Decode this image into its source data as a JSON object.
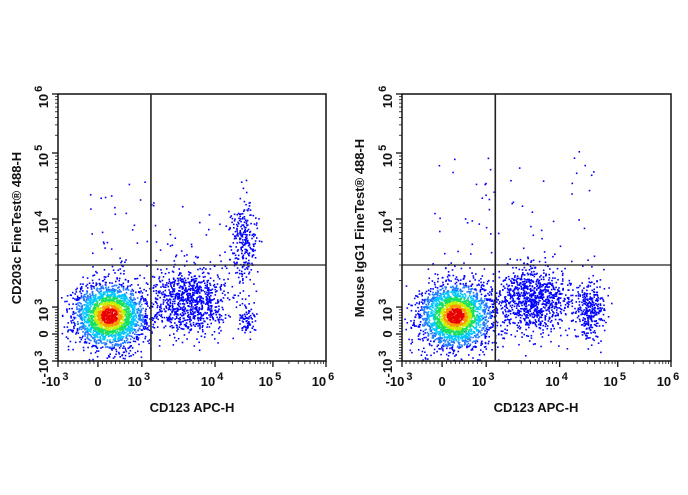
{
  "chart_data": [
    {
      "type": "scatter",
      "subtype": "flow-cytometry-density-dot-plot",
      "xlabel": "CD123 APC-H",
      "ylabel": "CD203c FineTest® 488-H",
      "x_scale": "biexponential",
      "y_scale": "biexponential",
      "xlim": [
        -1000,
        1000000
      ],
      "ylim": [
        -1000,
        1000000
      ],
      "x_ticks": [
        {
          "value": -1000,
          "base": "-10",
          "exp": "3"
        },
        {
          "value": 0,
          "base": "0",
          "exp": ""
        },
        {
          "value": 1000,
          "base": "10",
          "exp": "3"
        },
        {
          "value": 10000,
          "base": "10",
          "exp": "4"
        },
        {
          "value": 100000,
          "base": "10",
          "exp": "5"
        },
        {
          "value": 1000000,
          "base": "10",
          "exp": "6"
        }
      ],
      "y_ticks": [
        {
          "value": -1000,
          "base": "-10",
          "exp": "3"
        },
        {
          "value": 0,
          "base": "0",
          "exp": ""
        },
        {
          "value": 1000,
          "base": "10",
          "exp": "3"
        },
        {
          "value": 10000,
          "base": "10",
          "exp": "4"
        },
        {
          "value": 100000,
          "base": "10",
          "exp": "5"
        },
        {
          "value": 1000000,
          "base": "10",
          "exp": "6"
        }
      ],
      "quadrant_gate": {
        "x": 1330,
        "y": 3000
      },
      "populations": [
        {
          "center": [
            250,
            700
          ],
          "x_range": [
            -600,
            1200
          ],
          "y_range": [
            -150,
            2500
          ],
          "count": 2400,
          "density_colored": true
        },
        {
          "center": [
            4500,
            1200
          ],
          "x_range": [
            1300,
            15000
          ],
          "y_range": [
            -200,
            2300
          ],
          "count": 900,
          "density_colored": false
        },
        {
          "center": [
            30000,
            5500
          ],
          "x_range": [
            17000,
            50000
          ],
          "y_range": [
            2000,
            19000
          ],
          "count": 260,
          "density_colored": false
        },
        {
          "center": [
            35000,
            600
          ],
          "x_range": [
            25000,
            50000
          ],
          "y_range": [
            0,
            1200
          ],
          "count": 80,
          "density_colored": false
        },
        {
          "center": [
            500,
            8000
          ],
          "x_range": [
            -300,
            30000
          ],
          "y_range": [
            3000,
            40000
          ],
          "count": 60,
          "density_colored": false,
          "sparse": true
        }
      ]
    },
    {
      "type": "scatter",
      "subtype": "flow-cytometry-density-dot-plot",
      "xlabel": "CD123 APC-H",
      "ylabel": "Mouse IgG1 FineTest® 488-H",
      "x_scale": "biexponential",
      "y_scale": "biexponential",
      "xlim": [
        -1000,
        1000000
      ],
      "ylim": [
        -1000,
        1000000
      ],
      "x_ticks": [
        {
          "value": -1000,
          "base": "-10",
          "exp": "3"
        },
        {
          "value": 0,
          "base": "0",
          "exp": ""
        },
        {
          "value": 1000,
          "base": "10",
          "exp": "3"
        },
        {
          "value": 10000,
          "base": "10",
          "exp": "4"
        },
        {
          "value": 100000,
          "base": "10",
          "exp": "5"
        },
        {
          "value": 1000000,
          "base": "10",
          "exp": "6"
        }
      ],
      "y_ticks": [
        {
          "value": -1000,
          "base": "-10",
          "exp": "3"
        },
        {
          "value": 0,
          "base": "0",
          "exp": ""
        },
        {
          "value": 1000,
          "base": "10",
          "exp": "3"
        },
        {
          "value": 10000,
          "base": "10",
          "exp": "4"
        },
        {
          "value": 100000,
          "base": "10",
          "exp": "5"
        },
        {
          "value": 1000000,
          "base": "10",
          "exp": "6"
        }
      ],
      "quadrant_gate": {
        "x": 1330,
        "y": 3000
      },
      "populations": [
        {
          "center": [
            290,
            700
          ],
          "x_range": [
            -600,
            1200
          ],
          "y_range": [
            -150,
            2500
          ],
          "count": 2400,
          "density_colored": true
        },
        {
          "center": [
            4500,
            1200
          ],
          "x_range": [
            1300,
            15000
          ],
          "y_range": [
            -200,
            2400
          ],
          "count": 950,
          "density_colored": false
        },
        {
          "center": [
            33000,
            900
          ],
          "x_range": [
            20000,
            60000
          ],
          "y_range": [
            -200,
            2200
          ],
          "count": 320,
          "density_colored": false
        },
        {
          "center": [
            500,
            8000
          ],
          "x_range": [
            -300,
            40000
          ],
          "y_range": [
            3000,
            120000
          ],
          "count": 60,
          "density_colored": false,
          "sparse": true
        }
      ]
    }
  ],
  "colors": {
    "low_density": "#0000ff",
    "density_scale": [
      "#0000ff",
      "#1e78ff",
      "#00c8ff",
      "#19e060",
      "#c8f000",
      "#ff9600",
      "#e80000"
    ],
    "axis": "#111111",
    "gate": "#222222"
  }
}
